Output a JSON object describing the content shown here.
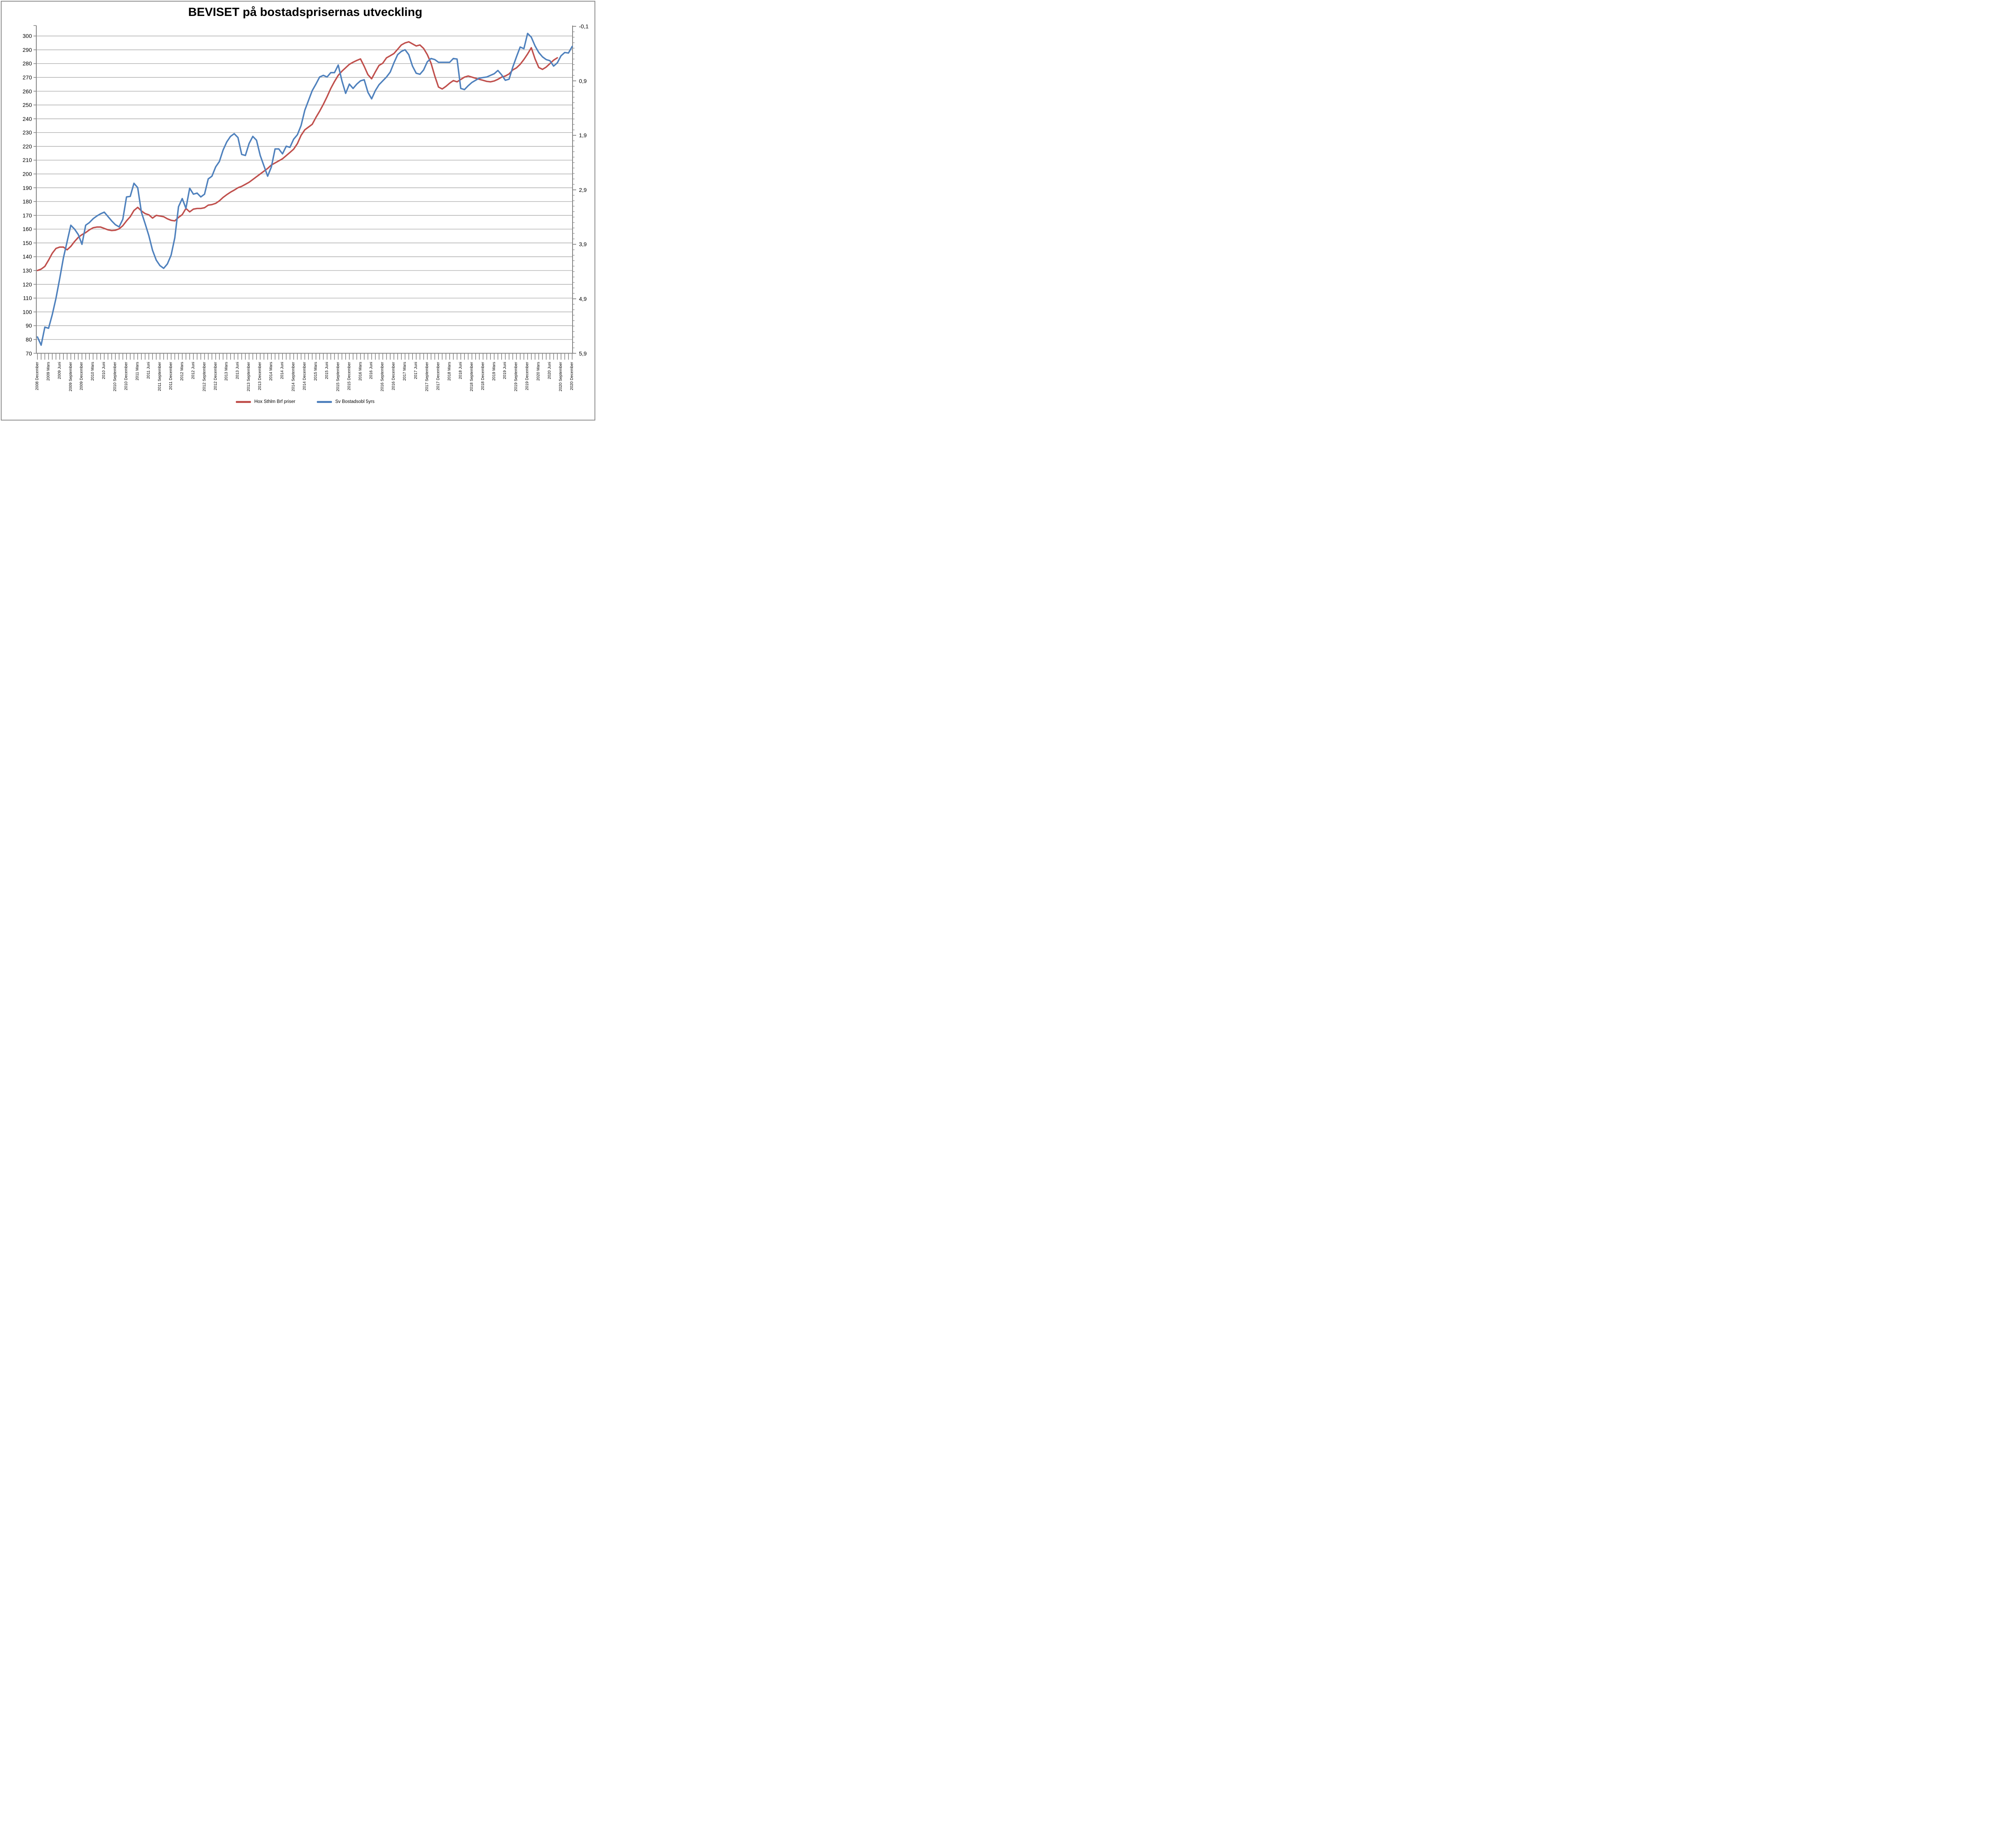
{
  "title": "BEVISET på bostadsprisernas utveckling",
  "chart_data": {
    "type": "line",
    "title": "BEVISET på bostadsprisernas utveckling",
    "grid": true,
    "legend_position": "bottom-center",
    "x_axis": {
      "unit": "month",
      "labels_every_n_months": 3,
      "quarter_labels": [
        "2008 December",
        "2009 Mars",
        "2009 Juni",
        "2009 September",
        "2009 December",
        "2010 Mars",
        "2010 Juni",
        "2010 September",
        "2010 December",
        "2011 Mars",
        "2011 Juni",
        "2011 September",
        "2011 December",
        "2012 Mars",
        "2012 Juni",
        "2012 September",
        "2012 December",
        "2013 Mars",
        "2013 Juni",
        "2013 September",
        "2013 December",
        "2014 Mars",
        "2014 Juni",
        "2014 September",
        "2014 December",
        "2015 Mars",
        "2015 Juni",
        "2015 September",
        "2015 December",
        "2016 Mars",
        "2016 Juni",
        "2016 September",
        "2016 December",
        "2017 Mars",
        "2017 Juni",
        "2017 September",
        "2017 December",
        "2018 Mars",
        "2018 Juni",
        "2018 September",
        "2018 December",
        "2019 Mars",
        "2019 Juni",
        "2019 September",
        "2019 December",
        "2020 Mars",
        "2020 Juni",
        "2020 September",
        "2020 December"
      ]
    },
    "left_axis": {
      "min": 70,
      "max": 300,
      "step": 10,
      "tick_labels": [
        "300",
        "290",
        "280",
        "270",
        "260",
        "250",
        "240",
        "230",
        "220",
        "210",
        "200",
        "190",
        "180",
        "170",
        "160",
        "150",
        "140",
        "130",
        "120",
        "110",
        "100",
        "90",
        "80",
        "70"
      ]
    },
    "right_axis": {
      "min": -0.1,
      "max": 5.9,
      "major_step": 1.0,
      "minor_step": 0.1,
      "inverted": true,
      "tick_labels": [
        "-0,1",
        "0,9",
        "1,9",
        "2,9",
        "3,9",
        "4,9",
        "5,9"
      ]
    },
    "series": [
      {
        "name": "Hox Sthlm Brf priser",
        "axis": "left",
        "color": "#C0504D",
        "values": [
          130,
          131,
          133,
          137.5,
          142.5,
          146,
          147,
          147,
          145,
          147.5,
          151,
          154,
          156,
          157.5,
          159.5,
          161,
          161.5,
          161.5,
          160.5,
          159.5,
          159,
          159.2,
          160.2,
          162.5,
          166,
          169,
          173.5,
          175.8,
          173.2,
          171.3,
          170.4,
          168,
          170,
          169.5,
          169,
          167.5,
          166.4,
          166,
          168.5,
          170.5,
          175,
          172.5,
          174.5,
          175,
          175,
          175.5,
          177.4,
          177.8,
          178.7,
          180.5,
          183,
          185,
          186.8,
          188.3,
          190,
          191,
          192.5,
          194,
          196,
          198,
          200,
          202,
          204,
          206.5,
          208,
          209.5,
          211,
          213.3,
          215.6,
          218,
          222,
          228,
          232,
          234,
          236,
          241,
          245.5,
          250.5,
          256,
          262,
          267,
          271.5,
          274.5,
          277,
          279.5,
          281,
          282.3,
          283.4,
          278,
          272,
          269,
          274,
          278.7,
          280.3,
          284.2,
          285.7,
          287.3,
          290.4,
          293.5,
          295,
          295.8,
          294.3,
          292.8,
          293.5,
          291,
          286.5,
          280.3,
          271,
          263,
          261.6,
          263.5,
          265.8,
          267.7,
          266.8,
          268.5,
          270.2,
          271,
          270.2,
          269.4,
          268.6,
          267.9,
          267.1,
          266.8,
          267.4,
          268.6,
          270.2,
          271,
          272.5,
          275.4,
          276.9,
          279.5,
          283,
          287,
          291.5,
          283.4,
          277.2,
          275.8,
          277.5,
          280,
          282.5,
          284.2,
          null,
          null,
          null,
          null
        ]
      },
      {
        "name": "Sv Bostadsobl 5yrs",
        "axis": "right",
        "color": "#4F81BD",
        "values": [
          5.6,
          5.75,
          5.42,
          5.44,
          5.19,
          4.89,
          4.53,
          4.15,
          3.85,
          3.55,
          3.62,
          3.72,
          3.9,
          3.55,
          3.5,
          3.43,
          3.38,
          3.34,
          3.31,
          3.39,
          3.47,
          3.54,
          3.58,
          3.44,
          3.03,
          3.02,
          2.78,
          2.86,
          3.31,
          3.52,
          3.74,
          4.01,
          4.19,
          4.29,
          4.34,
          4.26,
          4.1,
          3.78,
          3.21,
          3.06,
          3.24,
          2.87,
          2.98,
          2.96,
          3.03,
          2.98,
          2.7,
          2.65,
          2.48,
          2.38,
          2.17,
          2.02,
          1.92,
          1.87,
          1.94,
          2.25,
          2.27,
          2.05,
          1.92,
          1.99,
          2.27,
          2.46,
          2.65,
          2.48,
          2.15,
          2.15,
          2.24,
          2.1,
          2.12,
          1.97,
          1.89,
          1.72,
          1.44,
          1.26,
          1.08,
          0.96,
          0.83,
          0.8,
          0.83,
          0.75,
          0.75,
          0.61,
          0.9,
          1.13,
          0.96,
          1.04,
          0.96,
          0.9,
          0.88,
          1.11,
          1.23,
          1.08,
          0.97,
          0.9,
          0.83,
          0.74,
          0.57,
          0.42,
          0.36,
          0.33,
          0.42,
          0.63,
          0.76,
          0.78,
          0.7,
          0.55,
          0.49,
          0.51,
          0.56,
          0.56,
          0.56,
          0.56,
          0.49,
          0.5,
          1.04,
          1.06,
          0.99,
          0.93,
          0.89,
          0.85,
          0.84,
          0.83,
          0.8,
          0.77,
          0.71,
          0.79,
          0.89,
          0.87,
          0.65,
          0.46,
          0.28,
          0.31,
          0.03,
          0.1,
          0.26,
          0.38,
          0.46,
          0.51,
          0.53,
          0.63,
          0.57,
          0.44,
          0.38,
          0.39,
          0.27
        ]
      }
    ],
    "colors": {
      "series_red": "#C0504D",
      "series_blue": "#4F81BD",
      "gridline": "#9c9c9c",
      "axis": "#808080",
      "border": "#8a8a8a"
    }
  },
  "legend": {
    "items": [
      {
        "label": "Hox Sthlm Brf priser",
        "color": "#C0504D"
      },
      {
        "label": "Sv Bostadsobl 5yrs",
        "color": "#4F81BD"
      }
    ]
  }
}
